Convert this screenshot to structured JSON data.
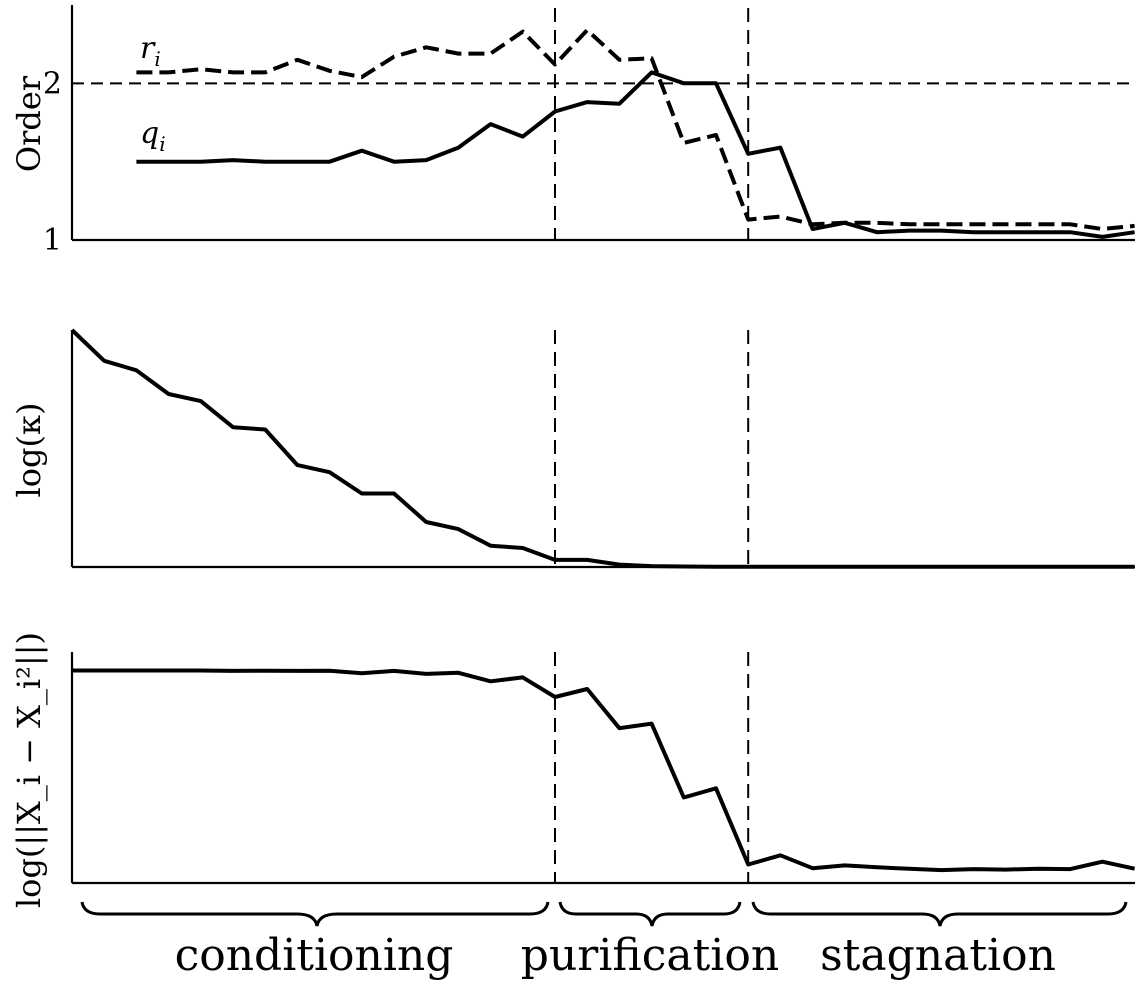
{
  "chart_data": [
    {
      "type": "line",
      "ylabel": "Order",
      "ylim": [
        1,
        2.5
      ],
      "yticks": [
        {
          "value": 1,
          "label": "1"
        },
        {
          "value": 2,
          "label": "2"
        }
      ],
      "hline": 2,
      "x": [
        3,
        4,
        5,
        6,
        7,
        8,
        9,
        10,
        11,
        12,
        13,
        14,
        15,
        16,
        17,
        18,
        19,
        20,
        21,
        22,
        23,
        24,
        25,
        26,
        27,
        28,
        29,
        30,
        31,
        32,
        33,
        34
      ],
      "series": [
        {
          "name": "r_i",
          "style": "dashed",
          "label": "r",
          "label_sub": "i",
          "values": [
            2.07,
            2.07,
            2.09,
            2.07,
            2.07,
            2.15,
            2.08,
            2.04,
            2.17,
            2.23,
            2.19,
            2.19,
            2.33,
            2.12,
            2.34,
            2.15,
            2.16,
            1.62,
            1.67,
            1.13,
            1.15,
            1.1,
            1.11,
            1.11,
            1.1,
            1.1,
            1.1,
            1.1,
            1.1,
            1.1,
            1.07,
            1.09
          ]
        },
        {
          "name": "q_i",
          "style": "solid",
          "label": "q",
          "label_sub": "i",
          "values": [
            1.5,
            1.5,
            1.5,
            1.51,
            1.5,
            1.5,
            1.5,
            1.57,
            1.5,
            1.51,
            1.59,
            1.74,
            1.66,
            1.82,
            1.88,
            1.87,
            2.07,
            2.0,
            2.0,
            1.55,
            1.59,
            1.07,
            1.11,
            1.05,
            1.06,
            1.06,
            1.05,
            1.05,
            1.05,
            1.05,
            1.02,
            1.05
          ]
        }
      ]
    },
    {
      "type": "line",
      "ylabel": "log(κ)",
      "ylim": [
        0,
        1
      ],
      "x": [
        1,
        2,
        3,
        4,
        5,
        6,
        7,
        8,
        9,
        10,
        11,
        12,
        13,
        14,
        15,
        16,
        17,
        18,
        19,
        20,
        21,
        22,
        23,
        24,
        25,
        26,
        27,
        28,
        29,
        30,
        31,
        32,
        33,
        34
      ],
      "series": [
        {
          "style": "solid",
          "values": [
            1.0,
            0.87,
            0.83,
            0.73,
            0.7,
            0.59,
            0.58,
            0.43,
            0.4,
            0.31,
            0.31,
            0.19,
            0.16,
            0.09,
            0.08,
            0.03,
            0.03,
            0.01,
            0.004,
            0.002,
            0.001,
            0.001,
            0.001,
            0.001,
            0.001,
            0.001,
            0.001,
            0.001,
            0.001,
            0.001,
            0.001,
            0.001,
            0.001,
            0.001
          ]
        }
      ]
    },
    {
      "type": "line",
      "ylabel": "log(||X_i − X_i²||)",
      "ylim": [
        0,
        1
      ],
      "x": [
        1,
        2,
        3,
        4,
        5,
        6,
        7,
        8,
        9,
        10,
        11,
        12,
        13,
        14,
        15,
        16,
        17,
        18,
        19,
        20,
        21,
        22,
        23,
        24,
        25,
        26,
        27,
        28,
        29,
        30,
        31,
        32,
        33,
        34
      ],
      "series": [
        {
          "style": "solid",
          "values": [
            0.92,
            0.92,
            0.92,
            0.92,
            0.92,
            0.918,
            0.919,
            0.918,
            0.919,
            0.908,
            0.918,
            0.905,
            0.91,
            0.873,
            0.89,
            0.805,
            0.84,
            0.67,
            0.69,
            0.37,
            0.41,
            0.08,
            0.12,
            0.064,
            0.076,
            0.068,
            0.062,
            0.056,
            0.06,
            0.058,
            0.062,
            0.06,
            0.092,
            0.062
          ]
        }
      ]
    }
  ],
  "phase_boundaries": [
    16,
    22
  ],
  "phases": [
    "conditioning",
    "purification",
    "stagnation"
  ]
}
